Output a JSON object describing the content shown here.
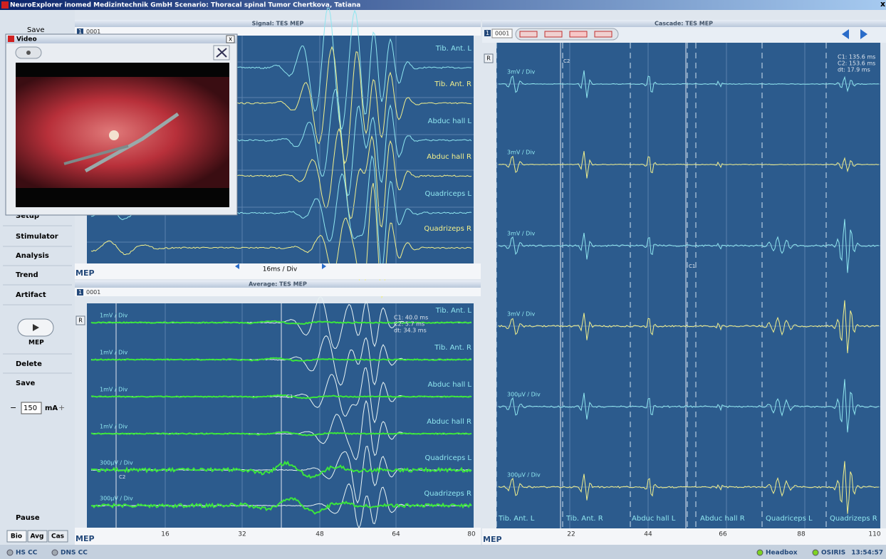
{
  "title_bar": {
    "text": "NeuroExplorer   inomed Medizintechnik GmbH    Scenario: Thoracal spinal Tumor    Chertkova, Tatiana",
    "close": "x"
  },
  "sidebar": {
    "save_top": "Save",
    "menu": [
      "Setup",
      "Stimulator",
      "Analysis",
      "Trend",
      "Artifact"
    ],
    "mep": "MEP",
    "actions": [
      "Delete",
      "Save"
    ],
    "current": {
      "minus": "−",
      "value": "150",
      "unit": "mA",
      "plus": "+"
    },
    "pause": "Pause",
    "tabs": [
      "Bio",
      "Avg",
      "Cas"
    ]
  },
  "video": {
    "title": "Video",
    "close": "x"
  },
  "signal": {
    "title": "Signal: TES MEP",
    "id_num": "1",
    "id": "0001",
    "channels": [
      "Tib. Ant. L",
      "Tib. Ant. R",
      "Abduc hall L",
      "Abduc hall R",
      "Quadriceps L",
      "Quadrizeps R"
    ],
    "scale": "16ms / Div",
    "tag": "MEP"
  },
  "average": {
    "title": "Average: TES MEP",
    "id_num": "1",
    "id": "0001",
    "r": "R",
    "channels": [
      "Tib. Ant. L",
      "Tib. Ant. R",
      "Abduc hall L",
      "Abduc hall R",
      "Quadriceps L",
      "Quadrizeps R"
    ],
    "divs": [
      "1mV / Div",
      "1mV / Div",
      "1mV / Div",
      "1mV / Div",
      "300µV / Div",
      "300µV / Div"
    ],
    "cursors": [
      "C1:   40.0 ms",
      "C2:    5.7 ms",
      "dt:   34.3 ms"
    ],
    "markers": [
      "C1",
      "C2"
    ],
    "x_labels": [
      "16",
      "32",
      "48",
      "64",
      "80"
    ],
    "tag": "MEP"
  },
  "cascade": {
    "title": "Cascade: TES MEP",
    "id_num": "1",
    "id": "0001",
    "r": "R",
    "divs": [
      "3mV / Div",
      "3mV / Div",
      "3mV / Div",
      "3mV / Div",
      "300µV / Div",
      "300µV / Div"
    ],
    "cursors": [
      "C1:  135.6 ms",
      "C2:  153.6 ms",
      "dt:   17.9 ms"
    ],
    "markers": [
      "C1",
      "C2"
    ],
    "channels": [
      "Tib. Ant. L",
      "Tib. Ant. R",
      "Abduc hall L",
      "Abduc hall R",
      "Quadriceps L",
      "Quadrizeps R"
    ],
    "x_labels": [
      "22",
      "44",
      "66",
      "88",
      "110"
    ],
    "tag": "MEP"
  },
  "status": {
    "left": [
      "HS CC",
      "DNS CC"
    ],
    "right": [
      "Headbox",
      "OSIRIS"
    ],
    "time": "13:54:57"
  }
}
